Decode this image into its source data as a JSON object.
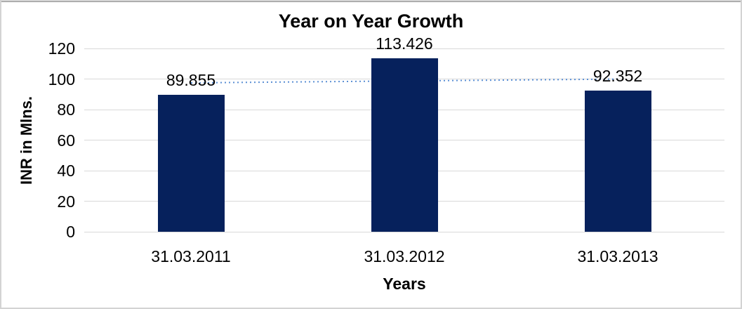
{
  "window": {
    "background": "#ffffff",
    "border_color": "#d3d3d3",
    "top_rule_color": "#8f8f8f"
  },
  "chart_data": {
    "type": "bar",
    "title": "Year on Year Growth",
    "categories": [
      "31.03.2011",
      "31.03.2012",
      "31.03.2013"
    ],
    "values": [
      89.855,
      113.426,
      92.352
    ],
    "data_labels": [
      "89.855",
      "113.426",
      "92.352"
    ],
    "xlabel": "Years",
    "ylabel": "INR in Mlns.",
    "ylim": [
      0,
      120
    ],
    "y_ticks": [
      0,
      20,
      40,
      60,
      80,
      100,
      120
    ],
    "grid": "horizontal",
    "legend": "none",
    "bar_color": "#06215c",
    "gridline_color": "#d9d9d9",
    "axis_line_color": "#d9d9d9",
    "label_color": "#000000",
    "trendline": {
      "type": "linear",
      "style": "dotted",
      "color": "#5b8fd4",
      "spans": "first-to-last-category"
    }
  }
}
